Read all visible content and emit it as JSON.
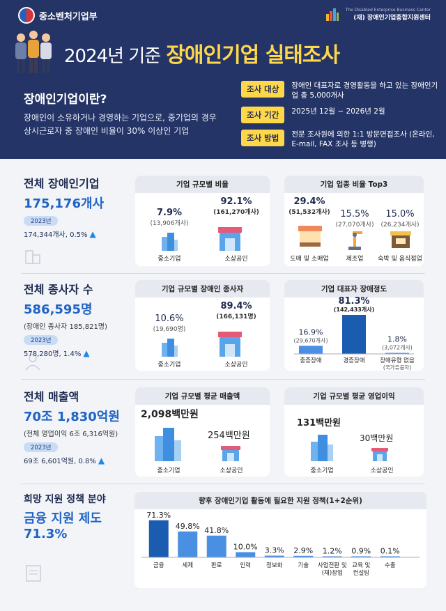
{
  "header": {
    "ministry": "중소벤처기업부",
    "debc_en": "The Disabled Enterprise Business Center",
    "debc_ko": "(재) 장애인기업종합지원센터",
    "debc_logo": "DEBC",
    "title_year": "2024년 기준",
    "title_main": "장애인기업 실태조사",
    "def_q": "장애인기업이란?",
    "def_body": "장애인이 소유하거나 경영하는 기업으로, 중기업의 경우 상시근로자 중 장애인 비율이 30% 이상인 기업",
    "survey": [
      {
        "label": "조사 대상",
        "value": "장애인 대표자로 경영활동을 하고 있는 장애인기업 총 5,000개사"
      },
      {
        "label": "조사 기간",
        "value": "2025년 12월 ~ 2026년 2월"
      },
      {
        "label": "조사 방법",
        "value": "전문 조사원에 의한 1:1 방문면접조사 (온라인, E-mail, FAX 조사 등 병행)"
      }
    ]
  },
  "sections": {
    "firms": {
      "heading": "전체 장애인기업",
      "big": "175,176개사",
      "year": "2023년",
      "prev": "174,344개사, 0.5%",
      "card1": {
        "title": "기업 규모별 비율",
        "a_pct": "7.9%",
        "a_cnt": "(13,906개사)",
        "a_label": "중소기업",
        "b_pct": "92.1%",
        "b_cnt": "(161,270개사)",
        "b_label": "소상공인"
      },
      "card2": {
        "title": "기업 업종 비율 Top3",
        "items": [
          {
            "pct": "29.4%",
            "cnt": "(51,532개사)",
            "label": "도매 및 소매업"
          },
          {
            "pct": "15.5%",
            "cnt": "(27,070개사)",
            "label": "제조업"
          },
          {
            "pct": "15.0%",
            "cnt": "(26,234개사)",
            "label": "숙박 및 음식점업"
          }
        ]
      }
    },
    "workers": {
      "heading": "전체 종사자 수",
      "big": "586,595명",
      "sub": "(장애인 종사자 185,821명)",
      "year": "2023년",
      "prev": "578,280명, 1.4%",
      "card1": {
        "title": "기업 규모별 장애인 종사자",
        "a_pct": "10.6%",
        "a_cnt": "(19,690명)",
        "a_label": "중소기업",
        "b_pct": "89.4%",
        "b_cnt": "(166,131명)",
        "b_label": "소상공인"
      },
      "card2": {
        "title": "기업 대표자 장애정도",
        "labels": [
          "중증장애",
          "경증장애",
          "장애유형 없음"
        ],
        "sublabel": "(국가유공자)",
        "pcts": [
          "16.9%",
          "81.3%",
          "1.8%"
        ],
        "cnts": [
          "(29,670개사)",
          "(142,433개사)",
          "(3,072개사)"
        ]
      }
    },
    "sales": {
      "heading": "전체 매출액",
      "big": "70조 1,830억원",
      "sub": "(전체 영업이익 6조 6,316억원)",
      "year": "2023년",
      "prev": "69조 6,601억원, 0.8%",
      "card1": {
        "title": "기업 규모별 평균 매출액",
        "a_val": "2,098백만원",
        "a_label": "중소기업",
        "b_val": "254백만원",
        "b_label": "소상공인"
      },
      "card2": {
        "title": "기업 규모별 평균 영업이익",
        "a_val": "131백만원",
        "a_label": "중소기업",
        "b_val": "30백만원",
        "b_label": "소상공인"
      }
    },
    "policy": {
      "heading": "희망 지원 정책 분야",
      "big1": "금융 지원 제도",
      "big2": "71.3%"
    }
  },
  "chart_data": {
    "type": "bar",
    "title": "향후 장애인기업 활동에 필요한 지원 정책(1+2순위)",
    "categories": [
      "금융",
      "세제",
      "판로",
      "인력",
      "정보화",
      "기술",
      "사업전환 및 (재)창업",
      "교육 및 컨설팅",
      "수출"
    ],
    "category_lines": [
      [
        "금융"
      ],
      [
        "세제"
      ],
      [
        "판로"
      ],
      [
        "인력"
      ],
      [
        "정보화"
      ],
      [
        "기술"
      ],
      [
        "사업전환 및",
        "(재)창업"
      ],
      [
        "교육 및",
        "컨설팅"
      ],
      [
        "수출"
      ]
    ],
    "values": [
      71.3,
      49.8,
      41.8,
      10.0,
      3.3,
      2.9,
      1.2,
      0.9,
      0.1
    ],
    "value_labels": [
      "71.3%",
      "49.8%",
      "41.8%",
      "10.0%",
      "3.3%",
      "2.9%",
      "1.2%",
      "0.9%",
      "0.1%"
    ],
    "ylim": [
      0,
      75
    ],
    "colors": {
      "first": "#1a5cb0",
      "rest": "#4a90e2"
    }
  }
}
